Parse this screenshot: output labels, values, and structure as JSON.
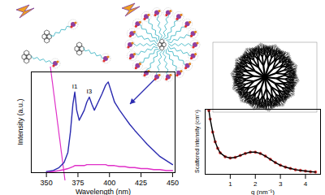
{
  "chart_data": [
    {
      "type": "line",
      "x_label": "Wavelength (nm)",
      "y_label": "Intensity (a.u.)",
      "x": [
        350,
        355,
        360,
        364,
        367,
        369,
        371,
        372.5,
        374,
        376,
        378,
        380,
        382,
        384,
        386,
        388,
        391,
        394,
        397,
        399,
        401,
        404,
        408,
        412,
        416,
        420,
        425,
        430,
        435,
        440,
        445,
        450
      ],
      "series": [
        {
          "color": "#2b2bb0",
          "values": [
            1,
            2,
            5,
            10,
            20,
            40,
            68,
            80,
            62,
            52,
            57,
            62,
            70,
            75,
            68,
            62,
            70,
            78,
            87,
            90,
            82,
            70,
            62,
            55,
            48,
            42,
            35,
            28,
            22,
            16,
            12,
            8
          ]
        },
        {
          "color": "#e030c8",
          "values": [
            0,
            1,
            2,
            3,
            4,
            5,
            6,
            7,
            7,
            7,
            7,
            7,
            8,
            8,
            8,
            8,
            8,
            8,
            8,
            7,
            7,
            7,
            6,
            6,
            5,
            5,
            4,
            4,
            3,
            3,
            2,
            2
          ]
        }
      ],
      "annotations": [
        {
          "text": "I1",
          "x": 372.5,
          "y": 80
        },
        {
          "text": "I3",
          "x": 384,
          "y": 75
        }
      ],
      "xlim": [
        338,
        452
      ],
      "xticks": [
        350,
        375,
        400,
        425,
        450
      ],
      "ylim": [
        0,
        100
      ],
      "tick_labels": "x"
    },
    {
      "type": "line",
      "x_label": "q (nm⁻¹)",
      "y_label": "Scattered intensity (cm⁻¹)",
      "x": [
        0.15,
        0.2,
        0.3,
        0.4,
        0.5,
        0.6,
        0.8,
        1.0,
        1.2,
        1.4,
        1.6,
        1.8,
        2.0,
        2.2,
        2.4,
        2.6,
        2.8,
        3.0,
        3.2,
        3.4,
        3.6,
        3.8,
        4.0,
        4.2,
        4.4
      ],
      "series": [
        {
          "type": "scatter",
          "marker": "circle",
          "color": "#e03030",
          "values": [
            9.8,
            8.5,
            6.5,
            5,
            4,
            3.3,
            2.7,
            2.5,
            2.6,
            2.9,
            3.2,
            3.4,
            3.4,
            3.2,
            2.8,
            2.3,
            1.8,
            1.4,
            1.1,
            0.9,
            0.7,
            0.6,
            0.5,
            0.4,
            0.35
          ]
        },
        {
          "type": "line",
          "color": "#000000",
          "values": [
            9.8,
            8.5,
            6.5,
            5,
            4,
            3.3,
            2.7,
            2.5,
            2.6,
            2.9,
            3.2,
            3.4,
            3.4,
            3.2,
            2.8,
            2.3,
            1.8,
            1.4,
            1.1,
            0.9,
            0.7,
            0.6,
            0.5,
            0.4,
            0.35
          ]
        }
      ],
      "xlim": [
        0,
        4.6
      ],
      "xticks": [
        1,
        2,
        3,
        4
      ],
      "ylim": [
        0,
        10
      ],
      "tick_labels": "x"
    }
  ]
}
